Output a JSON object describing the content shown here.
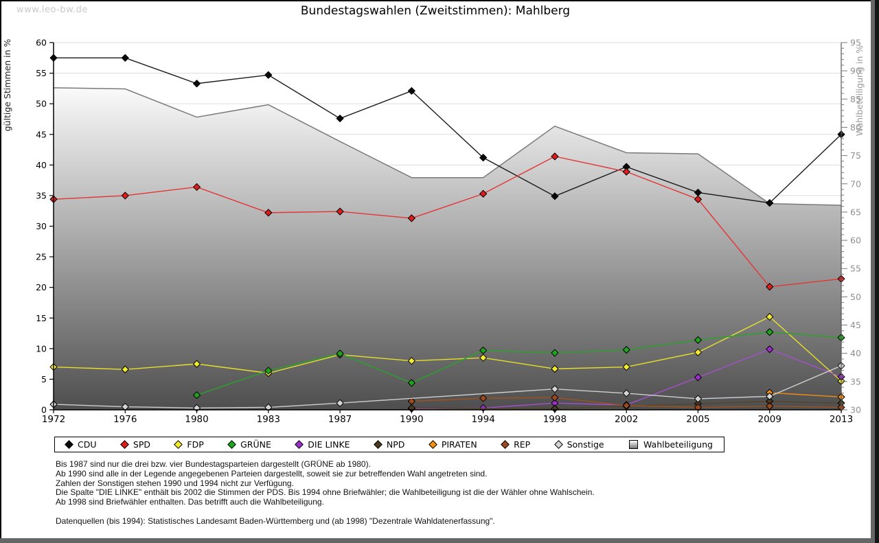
{
  "site": "www.leo-bw.de",
  "title": "Bundestagswahlen (Zweitstimmen): Mahlberg",
  "chart_data": {
    "type": "line",
    "x_categories": [
      "1972",
      "1976",
      "1980",
      "1983",
      "1987",
      "1990",
      "1994",
      "1998",
      "2002",
      "2005",
      "2009",
      "2013"
    ],
    "left_axis": {
      "label": "gültige Stimmen in %",
      "min": 0,
      "max": 60,
      "step": 5
    },
    "right_axis": {
      "label": "Wahlbeteiligung in %",
      "min": 30,
      "max": 95,
      "step": 5
    },
    "grid": true,
    "legend_position": "bottom",
    "series": [
      {
        "name": "CDU",
        "color": "#0a0a0a",
        "line": "#1a1a1a",
        "values": [
          57.5,
          57.5,
          53.3,
          54.7,
          47.6,
          52.1,
          41.2,
          34.9,
          39.7,
          35.5,
          33.8,
          45.0
        ]
      },
      {
        "name": "SPD",
        "color": "#dd1c1c",
        "line": "#e23535",
        "values": [
          34.4,
          35.0,
          36.4,
          32.2,
          32.4,
          31.3,
          35.3,
          41.4,
          38.9,
          34.4,
          20.1,
          21.4
        ]
      },
      {
        "name": "FDP",
        "color": "#f2ea30",
        "line": "#e8e02a",
        "values": [
          7.0,
          6.6,
          7.5,
          6.0,
          9.0,
          8.0,
          8.5,
          6.7,
          7.0,
          9.4,
          15.2,
          4.7
        ]
      },
      {
        "name": "GRÜNE",
        "color": "#1ea51e",
        "line": "#28a428",
        "values": [
          null,
          null,
          2.4,
          6.4,
          9.2,
          4.4,
          9.7,
          9.3,
          9.8,
          11.4,
          12.7,
          11.8
        ]
      },
      {
        "name": "DIE LINKE",
        "color": "#9b30c8",
        "line": "#a64fd0",
        "values": [
          null,
          null,
          null,
          null,
          null,
          0.2,
          0.3,
          1.1,
          0.8,
          5.3,
          9.9,
          5.4
        ]
      },
      {
        "name": "NPD",
        "color": "#4a3a22",
        "line": "#55452a",
        "values": [
          null,
          null,
          null,
          null,
          null,
          0.3,
          null,
          0.2,
          0.6,
          1.0,
          1.4,
          1.1
        ],
        "connect_gaps": true
      },
      {
        "name": "PIRATEN",
        "color": "#f59015",
        "line": "#ef8c12",
        "values": [
          null,
          null,
          null,
          null,
          null,
          null,
          null,
          null,
          null,
          null,
          2.8,
          2.1
        ]
      },
      {
        "name": "REP",
        "color": "#9c4a1e",
        "line": "#a0521f",
        "values": [
          null,
          null,
          null,
          null,
          null,
          1.4,
          1.9,
          2.0,
          0.7,
          0.4,
          0.6,
          0.4
        ]
      },
      {
        "name": "Sonstige",
        "color": "#d4d4d4",
        "line": "#cfcfcf",
        "values": [
          0.9,
          0.5,
          0.3,
          0.4,
          1.1,
          null,
          null,
          3.4,
          2.7,
          1.8,
          2.2,
          7.2
        ],
        "connect_gaps": true
      }
    ],
    "turnout": {
      "name": "Wahlbeteiligung",
      "axis": "right",
      "edge_color": "#7a7a7a",
      "fill_top": "#fafafa",
      "fill_bottom": "#4e4e4e",
      "values": [
        87.0,
        86.8,
        81.8,
        84.0,
        77.5,
        71.1,
        71.1,
        80.2,
        75.5,
        75.3,
        66.5,
        66.2
      ]
    }
  },
  "footnotes": [
    "Bis 1987 sind nur die drei bzw. vier Bundestagsparteien dargestellt (GRÜNE ab 1980).",
    "Ab 1990 sind alle in der Legende angegebenen Parteien dargestellt, soweit sie zur betreffenden Wahl angetreten sind.",
    "Zahlen der Sonstigen stehen 1990 und 1994 nicht zur Verfügung.",
    "Die Spalte \"DIE LINKE\" enthält bis 2002 die Stimmen der PDS. Bis 1994 ohne Briefwähler; die Wahlbeteiligung ist die der Wähler ohne Wahlschein.",
    "Ab 1998 sind Briefwähler enthalten. Das betrifft auch die Wahlbeteiligung.",
    "",
    "Datenquellen (bis 1994): Statistisches Landesamt Baden-Württemberg und (ab 1998) \"Dezentrale Wahldatenerfassung\"."
  ]
}
